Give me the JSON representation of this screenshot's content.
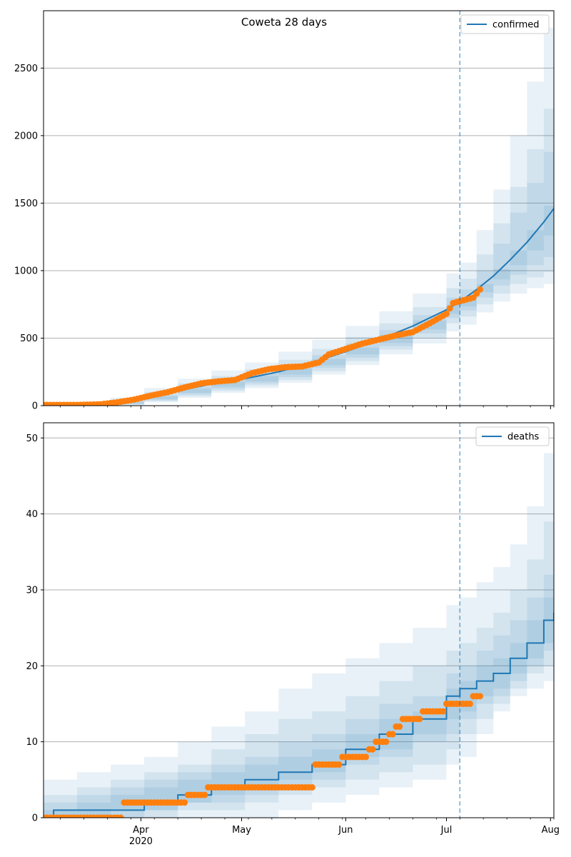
{
  "colors": {
    "line": "#1f77b4",
    "points": "#ff7f0e",
    "band": "#1f77b4",
    "grid": "#b0b0b0",
    "axis": "#000000"
  },
  "chart_data": [
    {
      "type": "line",
      "title": "Coweta 28 days",
      "legend": "confirmed",
      "legend_position": "top-right",
      "x_type": "date",
      "xlim": [
        "2020-03-03",
        "2020-08-02"
      ],
      "ylim": [
        0,
        2925
      ],
      "yticks": [
        0,
        500,
        1000,
        1500,
        2000,
        2500
      ],
      "grid": "horizontal",
      "forecast_start": "2020-07-05",
      "x_labels": [
        "Apr",
        "May",
        "Jun",
        "Jul",
        "Aug"
      ],
      "year_label": "2020",
      "band_alphas": [
        0.1,
        0.1,
        0.1,
        0.1
      ],
      "model": {
        "x": [
          "2020-03-03",
          "2020-03-13",
          "2020-03-23",
          "2020-04-02",
          "2020-04-12",
          "2020-04-22",
          "2020-05-02",
          "2020-05-12",
          "2020-05-22",
          "2020-06-01",
          "2020-06-11",
          "2020-06-21",
          "2020-07-01",
          "2020-07-05",
          "2020-07-10",
          "2020-07-15",
          "2020-07-20",
          "2020-07-25",
          "2020-07-30",
          "2020-08-02"
        ],
        "median": [
          2,
          6,
          20,
          58,
          110,
          160,
          200,
          250,
          320,
          400,
          490,
          590,
          710,
          770,
          860,
          960,
          1080,
          1210,
          1360,
          1460
        ],
        "bands": [
          {
            "lower": [
              0,
              0,
              3,
              25,
              58,
              95,
              130,
              170,
              230,
              300,
              380,
              460,
              550,
              600,
              690,
              770,
              830,
              870,
              900,
              920
            ],
            "upper": [
              10,
              22,
              60,
              130,
              200,
              260,
              320,
              400,
              490,
              590,
              700,
              830,
              980,
              1060,
              1300,
              1600,
              2000,
              2400,
              2800,
              2925
            ]
          },
          {
            "lower": [
              0,
              1,
              7,
              33,
              70,
              110,
              150,
              190,
              255,
              330,
              415,
              500,
              610,
              660,
              750,
              830,
              900,
              950,
              990,
              1010
            ],
            "upper": [
              7,
              15,
              45,
              100,
              165,
              220,
              270,
              340,
              420,
              510,
              610,
              730,
              870,
              940,
              1120,
              1350,
              1620,
              1900,
              2200,
              2400
            ]
          },
          {
            "lower": [
              0,
              2,
              11,
              40,
              83,
              125,
              165,
              210,
              280,
              355,
              440,
              535,
              650,
              705,
              800,
              890,
              970,
              1040,
              1100,
              1150
            ],
            "upper": [
              5,
              11,
              33,
              80,
              140,
              190,
              240,
              300,
              375,
              460,
              560,
              670,
              800,
              860,
              1000,
              1200,
              1430,
              1650,
              1880,
              2000
            ]
          },
          {
            "lower": [
              1,
              3,
              15,
              48,
              95,
              140,
              180,
              230,
              300,
              380,
              465,
              565,
              680,
              735,
              840,
              935,
              1040,
              1150,
              1260,
              1320
            ],
            "upper": [
              3,
              8,
              26,
              68,
              125,
              175,
              220,
              275,
              345,
              430,
              525,
              630,
              750,
              805,
              900,
              1010,
              1150,
              1300,
              1480,
              1600
            ]
          }
        ]
      },
      "observed": {
        "x": [
          "2020-03-03",
          "2020-03-13",
          "2020-03-20",
          "2020-03-25",
          "2020-03-30",
          "2020-04-04",
          "2020-04-09",
          "2020-04-14",
          "2020-04-19",
          "2020-04-24",
          "2020-04-29",
          "2020-05-04",
          "2020-05-09",
          "2020-05-14",
          "2020-05-19",
          "2020-05-24",
          "2020-05-27",
          "2020-06-01",
          "2020-06-06",
          "2020-06-11",
          "2020-06-16",
          "2020-06-21",
          "2020-06-26",
          "2020-07-01",
          "2020-07-03",
          "2020-07-06",
          "2020-07-09",
          "2020-07-11"
        ],
        "y": [
          5,
          5,
          10,
          25,
          45,
          75,
          100,
          135,
          165,
          180,
          190,
          240,
          270,
          285,
          290,
          320,
          380,
          420,
          460,
          490,
          520,
          545,
          610,
          680,
          760,
          780,
          800,
          860
        ]
      }
    },
    {
      "type": "line",
      "legend": "deaths",
      "legend_position": "top-right",
      "x_type": "date",
      "xlim": [
        "2020-03-03",
        "2020-08-02"
      ],
      "ylim": [
        0,
        52
      ],
      "yticks": [
        0,
        10,
        20,
        30,
        40,
        50
      ],
      "grid": "horizontal",
      "forecast_start": "2020-07-05",
      "x_labels": [
        "Apr",
        "May",
        "Jun",
        "Jul",
        "Aug"
      ],
      "year_label": "2020",
      "band_alphas": [
        0.1,
        0.1,
        0.1,
        0.1
      ],
      "model": {
        "x": [
          "2020-03-03",
          "2020-03-06",
          "2020-03-13",
          "2020-03-23",
          "2020-04-02",
          "2020-04-12",
          "2020-04-22",
          "2020-05-02",
          "2020-05-12",
          "2020-05-22",
          "2020-06-01",
          "2020-06-11",
          "2020-06-21",
          "2020-07-01",
          "2020-07-05",
          "2020-07-10",
          "2020-07-15",
          "2020-07-20",
          "2020-07-25",
          "2020-07-30",
          "2020-08-02"
        ],
        "median": [
          0,
          1,
          1,
          1,
          2,
          3,
          4,
          5,
          6,
          7,
          9,
          11,
          13,
          16,
          17,
          18,
          19,
          21,
          23,
          26,
          27
        ],
        "bands": [
          {
            "lower": [
              0,
              0,
              0,
              0,
              0,
              0,
              0,
              0,
              1,
              2,
              3,
              4,
              5,
              7,
              8,
              11,
              14,
              16,
              17,
              18,
              18
            ],
            "upper": [
              5,
              5,
              6,
              7,
              8,
              10,
              12,
              14,
              17,
              19,
              21,
              23,
              25,
              28,
              29,
              31,
              33,
              36,
              41,
              48,
              52
            ]
          },
          {
            "lower": [
              0,
              0,
              0,
              0,
              0,
              1,
              1,
              2,
              3,
              4,
              5,
              6,
              7,
              9,
              11,
              13,
              15,
              17,
              19,
              20,
              20
            ],
            "upper": [
              3,
              3,
              4,
              5,
              6,
              7,
              9,
              11,
              13,
              14,
              16,
              18,
              20,
              22,
              23,
              25,
              27,
              30,
              34,
              39,
              42
            ]
          },
          {
            "lower": [
              0,
              0,
              0,
              0,
              1,
              2,
              2,
              3,
              4,
              5,
              7,
              8,
              10,
              11,
              13,
              15,
              16,
              18,
              20,
              22,
              23
            ],
            "upper": [
              2,
              2,
              3,
              4,
              5,
              6,
              7,
              8,
              10,
              11,
              13,
              15,
              16,
              19,
              20,
              22,
              24,
              26,
              29,
              32,
              34
            ]
          },
          {
            "lower": [
              0,
              0,
              0,
              1,
              1,
              2,
              3,
              4,
              5,
              6,
              8,
              9,
              11,
              13,
              14,
              16,
              17,
              19,
              21,
              23,
              24
            ],
            "upper": [
              1,
              1,
              2,
              3,
              4,
              5,
              6,
              7,
              8,
              9,
              11,
              13,
              14,
              17,
              18,
              20,
              21,
              23,
              26,
              29,
              30
            ]
          }
        ]
      },
      "observed": {
        "x": [
          "2020-03-03",
          "2020-03-27",
          "2020-04-15",
          "2020-04-21",
          "2020-05-20",
          "2020-05-23",
          "2020-05-31",
          "2020-06-08",
          "2020-06-10",
          "2020-06-14",
          "2020-06-16",
          "2020-06-18",
          "2020-06-24",
          "2020-07-01",
          "2020-07-09"
        ],
        "y": [
          0,
          2,
          3,
          4,
          4,
          7,
          8,
          9,
          10,
          11,
          12,
          13,
          14,
          15,
          16
        ],
        "step_ends": [
          "2020-03-26",
          "2020-04-14",
          "2020-04-20",
          "2020-05-19",
          "2020-05-22",
          "2020-05-30",
          "2020-06-07",
          "2020-06-09",
          "2020-06-13",
          "2020-06-15",
          "2020-06-17",
          "2020-06-23",
          "2020-06-30",
          "2020-07-08",
          "2020-07-11"
        ]
      }
    }
  ]
}
